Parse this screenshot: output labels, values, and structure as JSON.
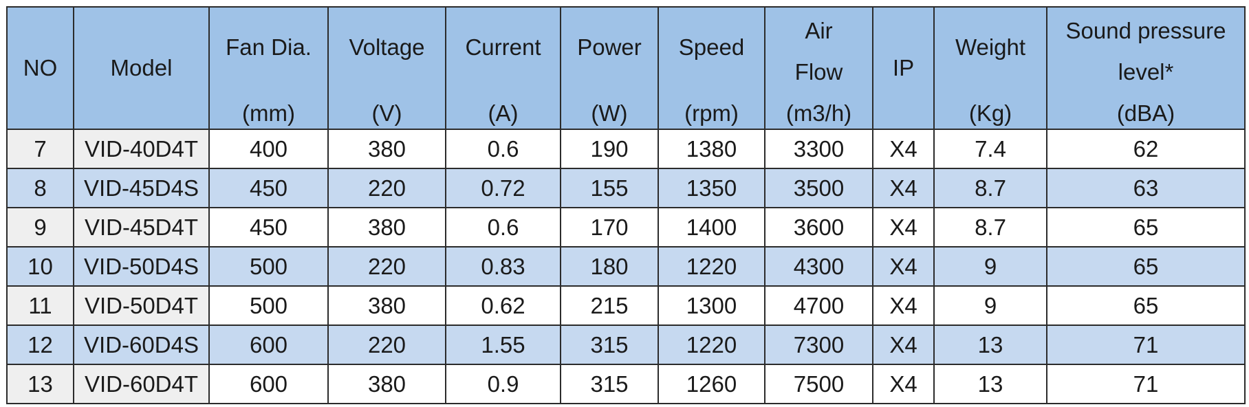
{
  "table": {
    "header": [
      [
        "NO"
      ],
      [
        "Model"
      ],
      [
        "Fan Dia.",
        "(mm)"
      ],
      [
        "Voltage",
        "(V)"
      ],
      [
        "Current",
        "(A)"
      ],
      [
        "Power",
        "(W)"
      ],
      [
        "Speed",
        "(rpm)"
      ],
      [
        "Air",
        "Flow",
        "(m3/h)"
      ],
      [
        "IP"
      ],
      [
        "Weight",
        "(Kg)"
      ],
      [
        "Sound pressure",
        "level*",
        "(dBA)"
      ]
    ],
    "rows": [
      [
        7,
        "VID-40D4T",
        400,
        380,
        0.6,
        190,
        1380,
        3300,
        "X4",
        7.4,
        62
      ],
      [
        8,
        "VID-45D4S",
        450,
        220,
        0.72,
        155,
        1350,
        3500,
        "X4",
        8.7,
        63
      ],
      [
        9,
        "VID-45D4T",
        450,
        380,
        0.6,
        170,
        1400,
        3600,
        "X4",
        8.7,
        65
      ],
      [
        10,
        "VID-50D4S",
        500,
        220,
        0.83,
        180,
        1220,
        4300,
        "X4",
        9,
        65
      ],
      [
        11,
        "VID-50D4T",
        500,
        380,
        0.62,
        215,
        1300,
        4700,
        "X4",
        9,
        65
      ],
      [
        12,
        "VID-60D4S",
        600,
        220,
        1.55,
        315,
        1220,
        7300,
        "X4",
        13,
        71
      ],
      [
        13,
        "VID-60D4T",
        600,
        380,
        0.9,
        315,
        1260,
        7500,
        "X4",
        13,
        71
      ]
    ]
  }
}
